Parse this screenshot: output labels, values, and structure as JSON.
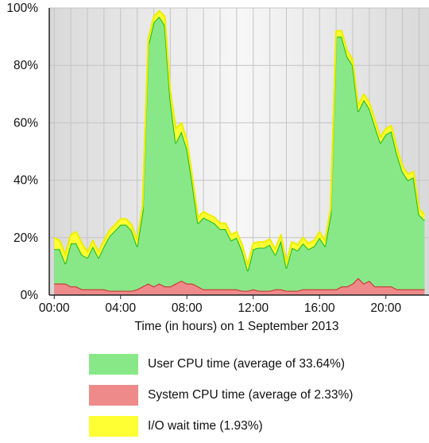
{
  "chart_data": {
    "type": "area",
    "stacked": true,
    "title": "",
    "xlabel": "Time (in hours) on 1 September 2013",
    "ylabel": "",
    "ylim": [
      0,
      100
    ],
    "xlim": [
      -0.3,
      22.6
    ],
    "x_ticks": [
      0,
      4,
      8,
      12,
      16,
      20
    ],
    "x_tick_labels": [
      "00:00",
      "04:00",
      "08:00",
      "12:00",
      "16:00",
      "20:00"
    ],
    "y_ticks": [
      0,
      20,
      40,
      60,
      80,
      100
    ],
    "y_tick_labels": [
      "0%",
      "20%",
      "40%",
      "60%",
      "80%",
      "100%"
    ],
    "grid": true,
    "legend_position": "bottom",
    "x": [
      0,
      0.33,
      0.67,
      1,
      1.33,
      1.67,
      2,
      2.33,
      2.67,
      3,
      3.33,
      3.67,
      4,
      4.33,
      4.67,
      5,
      5.33,
      5.67,
      6,
      6.33,
      6.67,
      7,
      7.33,
      7.67,
      8,
      8.33,
      8.67,
      9,
      9.33,
      9.67,
      10,
      10.33,
      10.67,
      11,
      11.33,
      11.67,
      12,
      12.33,
      12.67,
      13,
      13.33,
      13.67,
      14,
      14.33,
      14.67,
      15,
      15.33,
      15.67,
      16,
      16.33,
      16.67,
      17,
      17.33,
      17.67,
      18,
      18.33,
      18.67,
      19,
      19.33,
      19.67,
      20,
      20.33,
      20.67,
      21,
      21.33,
      21.67,
      22,
      22.33
    ],
    "series": [
      {
        "name": "System CPU time (average of 2.33%)",
        "color": "#ee8a8a",
        "line_color": "#cc3333",
        "values": [
          4,
          4,
          4,
          3,
          3,
          2,
          2,
          2,
          2,
          2,
          1.5,
          1.5,
          1.5,
          1.5,
          1.5,
          2,
          3,
          4,
          3,
          4,
          3,
          3,
          4,
          5,
          4,
          4,
          3,
          2,
          2,
          2,
          2,
          2,
          2,
          2,
          1.5,
          1.5,
          2,
          1.5,
          1.5,
          1.5,
          2,
          2,
          1.5,
          1.5,
          1.5,
          2,
          2,
          2,
          2,
          2,
          2,
          2,
          3,
          3,
          4,
          6,
          4,
          5,
          3,
          3,
          3,
          3,
          2,
          2,
          2,
          2,
          2,
          2
        ]
      },
      {
        "name": "User CPU time (average of 33.64%)",
        "color": "#88e888",
        "line_color": "#22bb22",
        "values": [
          12,
          12,
          7,
          15,
          15,
          12,
          11,
          15,
          11,
          15,
          19,
          21,
          23,
          23,
          21,
          15,
          26,
          83,
          92,
          93,
          91,
          65,
          49,
          52,
          47,
          35,
          22,
          25,
          24,
          23,
          21,
          21,
          17,
          18,
          14,
          7,
          14,
          15,
          15,
          16,
          12,
          17,
          8,
          15,
          14,
          16,
          14,
          15,
          18,
          15,
          26,
          88,
          87,
          80,
          76,
          58,
          64,
          60,
          56,
          50,
          53,
          54,
          47,
          41,
          38,
          39,
          26,
          24
        ]
      },
      {
        "name": "I/O wait time (1.93%)",
        "color": "#ffff33",
        "line_color": "#eeee00",
        "values": [
          4,
          3,
          3,
          3,
          4,
          4,
          2,
          2,
          2,
          2,
          2,
          2,
          2,
          2,
          2,
          2,
          2,
          2,
          2,
          2,
          3,
          3,
          5,
          3,
          3,
          2,
          2,
          2,
          2,
          2,
          2,
          2,
          2,
          2,
          2,
          2,
          2,
          2,
          2,
          2,
          2,
          2,
          2,
          2,
          2,
          2,
          2,
          2,
          2,
          2,
          2,
          2,
          2,
          2,
          2,
          2,
          2,
          2,
          2,
          2,
          2,
          2,
          2,
          2,
          2,
          2,
          2,
          2
        ]
      }
    ],
    "legend": [
      {
        "label": "User CPU time (average of 33.64%)",
        "color": "#88e888"
      },
      {
        "label": "System CPU time (average of 2.33%)",
        "color": "#ee8a8a"
      },
      {
        "label": "I/O wait time (1.93%)",
        "color": "#ffff33"
      }
    ]
  }
}
